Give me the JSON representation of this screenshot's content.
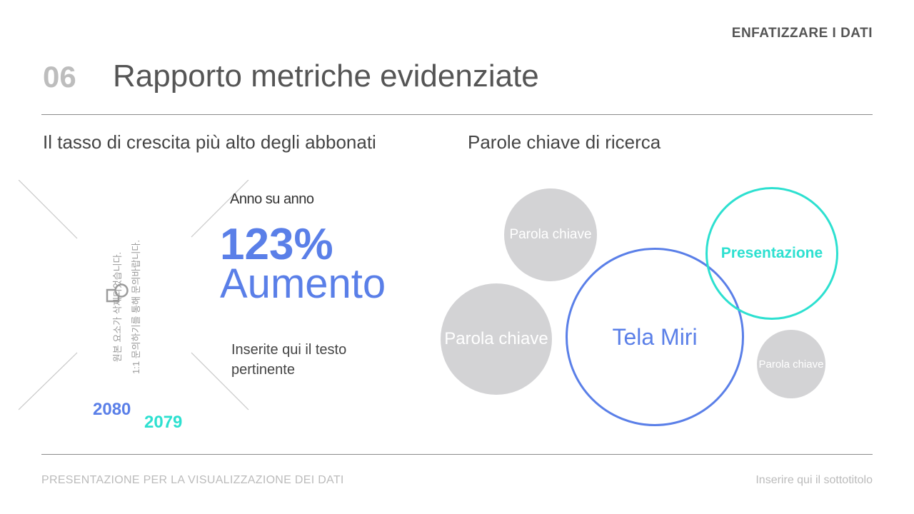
{
  "header": {
    "section_label": "ENFATIZZARE I DATI",
    "number": "06",
    "title": "Rapporto metriche evidenziate"
  },
  "left": {
    "subtitle": "Il tasso di crescita più alto degli abbonati",
    "placeholder_text_line1": "원본 요소가 삭제되었습니다.",
    "placeholder_text_line2": "1:1 문의하기를 통해 문의바랍니다.",
    "placeholder_icon": "shapes-icon",
    "caption": "Anno su anno",
    "big_value": "123%",
    "big_label": "Aumento",
    "description": "Inserite qui il testo pertinente",
    "year_a": "2080",
    "year_b": "2079"
  },
  "right": {
    "subtitle": "Parole chiave di ricerca",
    "bubbles": [
      {
        "label": "Parola chiave",
        "style": "gray"
      },
      {
        "label": "Parola chiave",
        "style": "gray"
      },
      {
        "label": "Tela Miri",
        "style": "blue-outline"
      },
      {
        "label": "Presentazione",
        "style": "teal-outline"
      },
      {
        "label": "Parola chiave",
        "style": "gray"
      }
    ]
  },
  "footer": {
    "left": "PRESENTAZIONE PER LA VISUALIZZAZIONE DEI DATI",
    "right": "Inserire qui il sottotitolo"
  },
  "colors": {
    "accent_blue": "#5a7fe8",
    "accent_teal": "#2de0d0",
    "bubble_gray": "#d3d3d5",
    "text_dark": "#444444"
  }
}
